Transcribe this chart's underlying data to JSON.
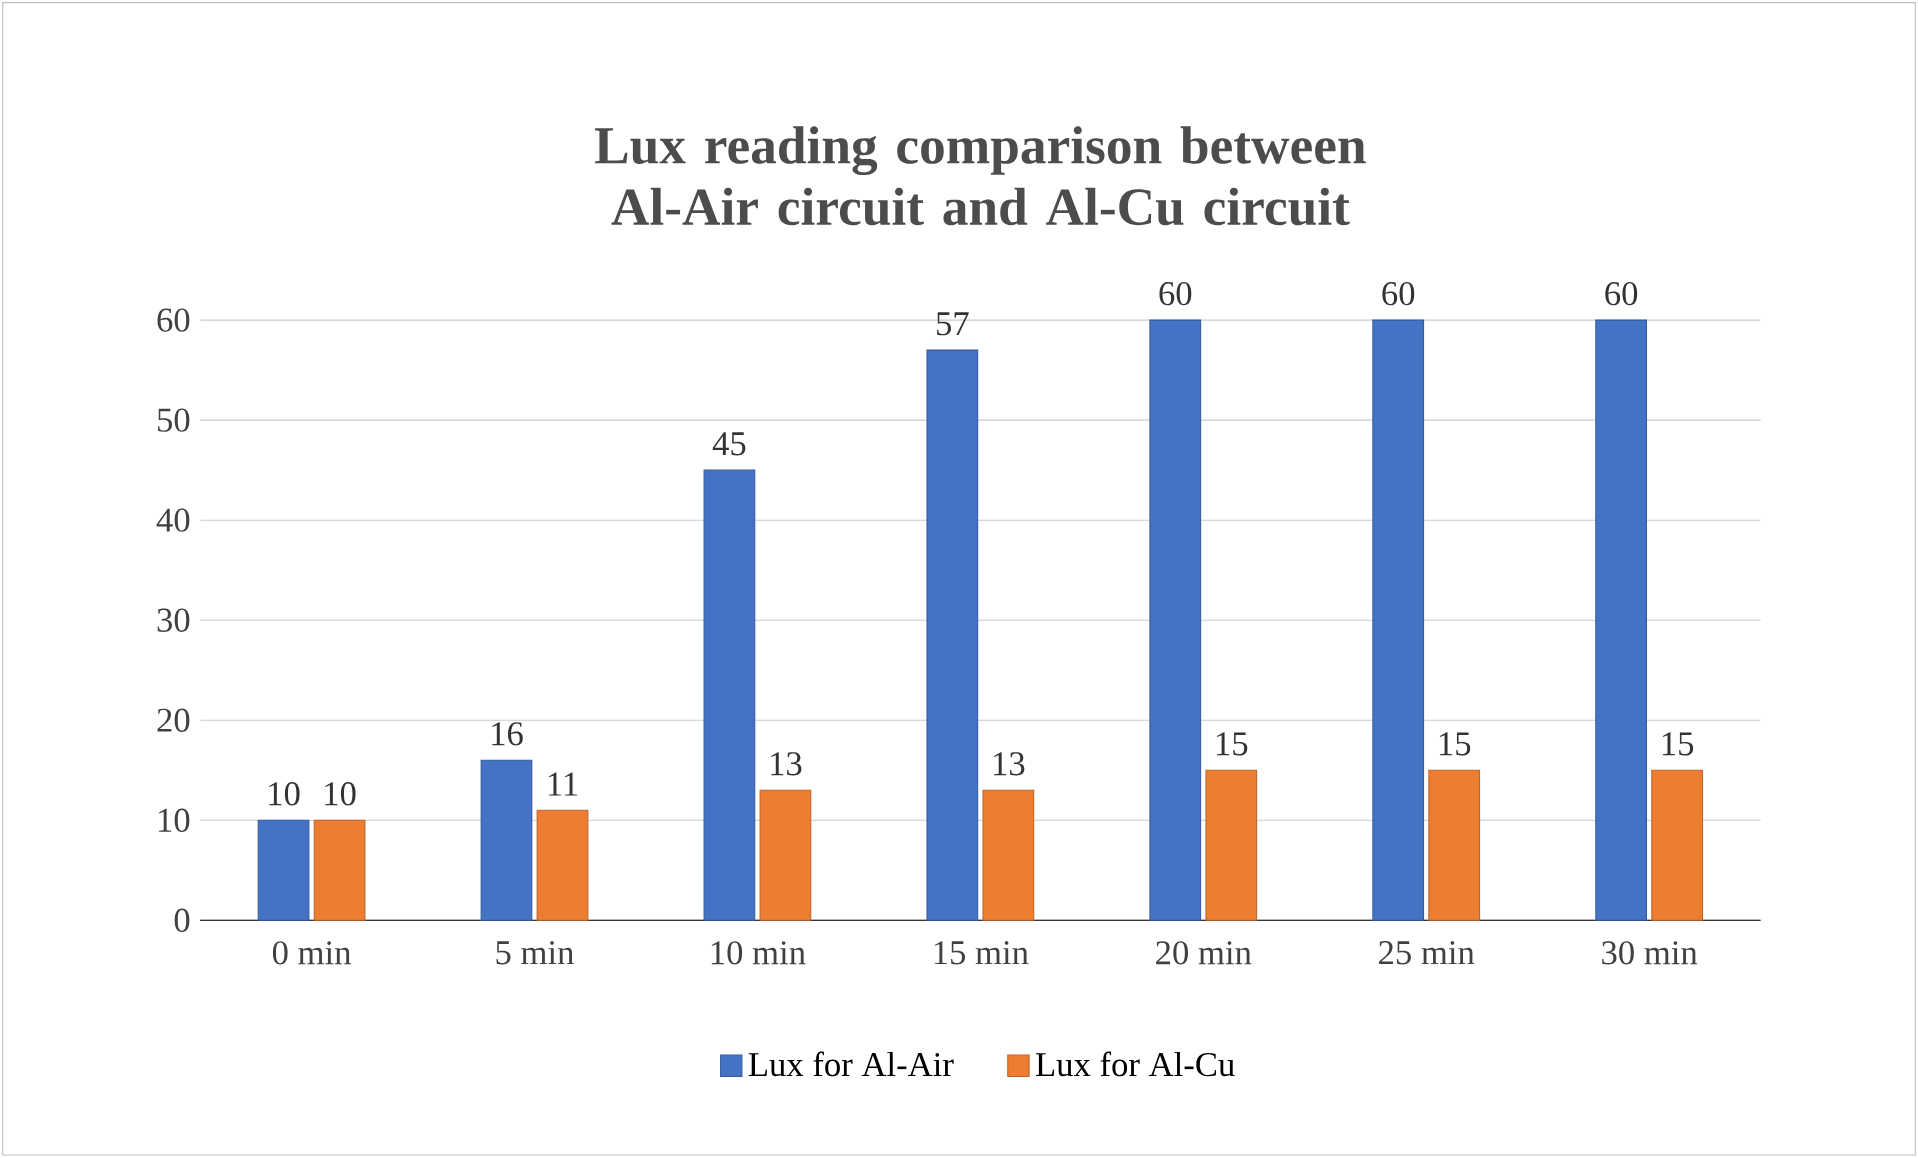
{
  "chart_data": {
    "type": "bar",
    "title": "Lux reading comparison between Al-Air circuit and Al-Cu circuit",
    "categories": [
      "0 min",
      "5 min",
      "10 min",
      "15 min",
      "20 min",
      "25 min",
      "30 min"
    ],
    "series": [
      {
        "name": "Lux for Al-Air",
        "color": "#4472c4",
        "values": [
          10,
          16,
          45,
          57,
          60,
          60,
          60
        ]
      },
      {
        "name": "Lux for Al-Cu",
        "color": "#ed7d31",
        "values": [
          10,
          11,
          13,
          13,
          15,
          15,
          15
        ]
      }
    ],
    "ylim": [
      0,
      60
    ],
    "yticks": [
      0,
      10,
      20,
      30,
      40,
      50,
      60
    ],
    "grid": "y",
    "legend": "bottom",
    "data_labels": true
  }
}
